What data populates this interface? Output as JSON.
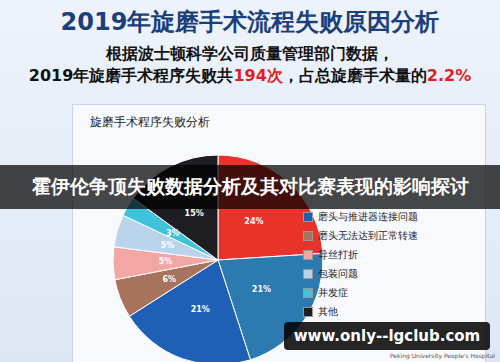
{
  "header": {
    "title": "2019年旋磨手术流程失败原因分析",
    "subtitle_line1": "根据波士顿科学公司质量管理部门数据，",
    "subtitle_line2": [
      {
        "text": "2019年旋磨手术程序失败共",
        "highlight": false
      },
      {
        "text": "194次",
        "highlight": true
      },
      {
        "text": "，占总旋磨手术量的",
        "highlight": false
      },
      {
        "text": "2.2%",
        "highlight": true
      }
    ]
  },
  "banner": "霍伊伦争顶失败数据分析及其对比赛表现的影响探讨",
  "watermark": "www.only--lgclub.com",
  "footer": "Peking University People's Hospital",
  "chart_data": {
    "type": "pie",
    "title": "旋磨手术程序失败分析",
    "categories": [
      null,
      null,
      "磨头与推进器连接问题",
      "磨头无法达到正常转速",
      "导丝打折",
      "包装问题",
      "并发症",
      "其他"
    ],
    "values": [
      24,
      21,
      21,
      6,
      5,
      5,
      3,
      15
    ],
    "value_labels": [
      "24%",
      "21%",
      "21%",
      "6%",
      "5%",
      "5%",
      "3%",
      "15%"
    ],
    "colors": [
      "#e8322a",
      "#2b7bb0",
      "#1f5fb5",
      "#a8735c",
      "#f2a7a5",
      "#b9d4ea",
      "#3fc2da",
      "#1e1e22"
    ],
    "data_labels": true
  }
}
